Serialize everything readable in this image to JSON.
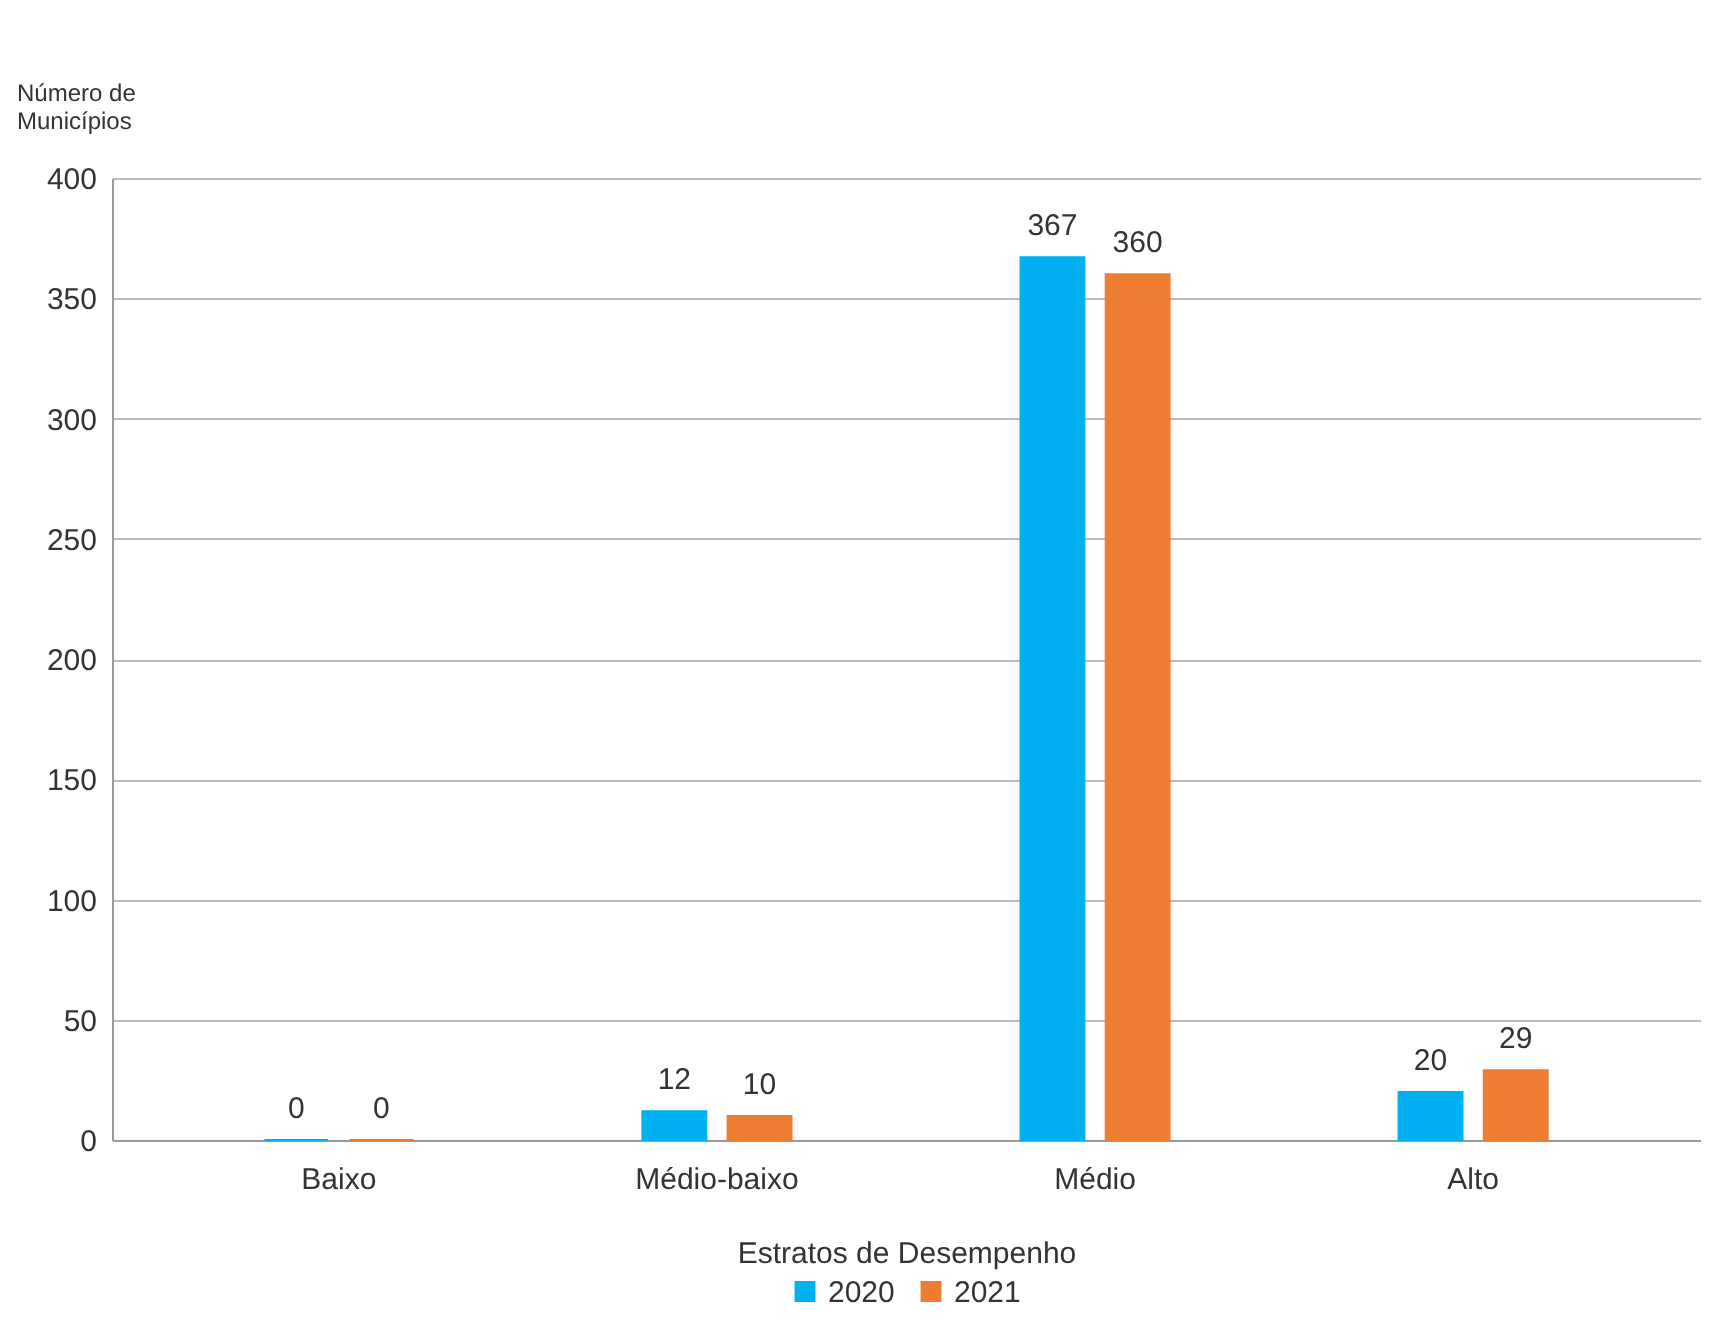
{
  "chart_data": {
    "type": "bar",
    "xlabel": "Estratos de Desempenho",
    "ylabel": "Número de Municípios",
    "categories": [
      "Baixo",
      "Médio-baixo",
      "Médio",
      "Alto"
    ],
    "series": [
      {
        "name": "2020",
        "color": "#00b0f0",
        "values": [
          0,
          12,
          367,
          20
        ]
      },
      {
        "name": "2021",
        "color": "#ed7d31",
        "values": [
          0,
          10,
          360,
          29
        ]
      }
    ],
    "ylim": [
      0,
      400
    ],
    "yticks": [
      0,
      50,
      100,
      150,
      200,
      250,
      300,
      350,
      400
    ],
    "grid": "y",
    "legend": "bottom",
    "data_labels": true
  }
}
